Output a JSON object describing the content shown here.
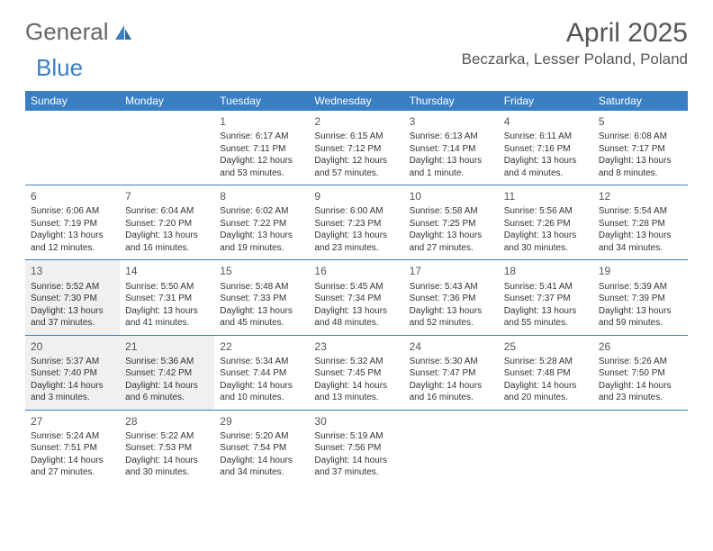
{
  "brand": {
    "general": "General",
    "blue": "Blue"
  },
  "title": "April 2025",
  "location": "Beczarka, Lesser Poland, Poland",
  "colors": {
    "header_bg": "#3a7fc4",
    "header_text": "#ffffff",
    "border": "#3a7fc4",
    "highlight_bg": "#f0f0f0",
    "text": "#333333",
    "logo_blue": "#3a7fc4",
    "logo_gray": "#666666"
  },
  "day_headers": [
    "Sunday",
    "Monday",
    "Tuesday",
    "Wednesday",
    "Thursday",
    "Friday",
    "Saturday"
  ],
  "weeks": [
    [
      null,
      null,
      {
        "n": "1",
        "sr": "Sunrise: 6:17 AM",
        "ss": "Sunset: 7:11 PM",
        "dl": "Daylight: 12 hours and 53 minutes."
      },
      {
        "n": "2",
        "sr": "Sunrise: 6:15 AM",
        "ss": "Sunset: 7:12 PM",
        "dl": "Daylight: 12 hours and 57 minutes."
      },
      {
        "n": "3",
        "sr": "Sunrise: 6:13 AM",
        "ss": "Sunset: 7:14 PM",
        "dl": "Daylight: 13 hours and 1 minute."
      },
      {
        "n": "4",
        "sr": "Sunrise: 6:11 AM",
        "ss": "Sunset: 7:16 PM",
        "dl": "Daylight: 13 hours and 4 minutes."
      },
      {
        "n": "5",
        "sr": "Sunrise: 6:08 AM",
        "ss": "Sunset: 7:17 PM",
        "dl": "Daylight: 13 hours and 8 minutes."
      }
    ],
    [
      {
        "n": "6",
        "sr": "Sunrise: 6:06 AM",
        "ss": "Sunset: 7:19 PM",
        "dl": "Daylight: 13 hours and 12 minutes."
      },
      {
        "n": "7",
        "sr": "Sunrise: 6:04 AM",
        "ss": "Sunset: 7:20 PM",
        "dl": "Daylight: 13 hours and 16 minutes."
      },
      {
        "n": "8",
        "sr": "Sunrise: 6:02 AM",
        "ss": "Sunset: 7:22 PM",
        "dl": "Daylight: 13 hours and 19 minutes."
      },
      {
        "n": "9",
        "sr": "Sunrise: 6:00 AM",
        "ss": "Sunset: 7:23 PM",
        "dl": "Daylight: 13 hours and 23 minutes."
      },
      {
        "n": "10",
        "sr": "Sunrise: 5:58 AM",
        "ss": "Sunset: 7:25 PM",
        "dl": "Daylight: 13 hours and 27 minutes."
      },
      {
        "n": "11",
        "sr": "Sunrise: 5:56 AM",
        "ss": "Sunset: 7:26 PM",
        "dl": "Daylight: 13 hours and 30 minutes."
      },
      {
        "n": "12",
        "sr": "Sunrise: 5:54 AM",
        "ss": "Sunset: 7:28 PM",
        "dl": "Daylight: 13 hours and 34 minutes."
      }
    ],
    [
      {
        "n": "13",
        "hl": true,
        "sr": "Sunrise: 5:52 AM",
        "ss": "Sunset: 7:30 PM",
        "dl": "Daylight: 13 hours and 37 minutes."
      },
      {
        "n": "14",
        "sr": "Sunrise: 5:50 AM",
        "ss": "Sunset: 7:31 PM",
        "dl": "Daylight: 13 hours and 41 minutes."
      },
      {
        "n": "15",
        "sr": "Sunrise: 5:48 AM",
        "ss": "Sunset: 7:33 PM",
        "dl": "Daylight: 13 hours and 45 minutes."
      },
      {
        "n": "16",
        "sr": "Sunrise: 5:45 AM",
        "ss": "Sunset: 7:34 PM",
        "dl": "Daylight: 13 hours and 48 minutes."
      },
      {
        "n": "17",
        "sr": "Sunrise: 5:43 AM",
        "ss": "Sunset: 7:36 PM",
        "dl": "Daylight: 13 hours and 52 minutes."
      },
      {
        "n": "18",
        "sr": "Sunrise: 5:41 AM",
        "ss": "Sunset: 7:37 PM",
        "dl": "Daylight: 13 hours and 55 minutes."
      },
      {
        "n": "19",
        "sr": "Sunrise: 5:39 AM",
        "ss": "Sunset: 7:39 PM",
        "dl": "Daylight: 13 hours and 59 minutes."
      }
    ],
    [
      {
        "n": "20",
        "hl": true,
        "sr": "Sunrise: 5:37 AM",
        "ss": "Sunset: 7:40 PM",
        "dl": "Daylight: 14 hours and 3 minutes."
      },
      {
        "n": "21",
        "hl": true,
        "sr": "Sunrise: 5:36 AM",
        "ss": "Sunset: 7:42 PM",
        "dl": "Daylight: 14 hours and 6 minutes."
      },
      {
        "n": "22",
        "sr": "Sunrise: 5:34 AM",
        "ss": "Sunset: 7:44 PM",
        "dl": "Daylight: 14 hours and 10 minutes."
      },
      {
        "n": "23",
        "sr": "Sunrise: 5:32 AM",
        "ss": "Sunset: 7:45 PM",
        "dl": "Daylight: 14 hours and 13 minutes."
      },
      {
        "n": "24",
        "sr": "Sunrise: 5:30 AM",
        "ss": "Sunset: 7:47 PM",
        "dl": "Daylight: 14 hours and 16 minutes."
      },
      {
        "n": "25",
        "sr": "Sunrise: 5:28 AM",
        "ss": "Sunset: 7:48 PM",
        "dl": "Daylight: 14 hours and 20 minutes."
      },
      {
        "n": "26",
        "sr": "Sunrise: 5:26 AM",
        "ss": "Sunset: 7:50 PM",
        "dl": "Daylight: 14 hours and 23 minutes."
      }
    ],
    [
      {
        "n": "27",
        "sr": "Sunrise: 5:24 AM",
        "ss": "Sunset: 7:51 PM",
        "dl": "Daylight: 14 hours and 27 minutes."
      },
      {
        "n": "28",
        "sr": "Sunrise: 5:22 AM",
        "ss": "Sunset: 7:53 PM",
        "dl": "Daylight: 14 hours and 30 minutes."
      },
      {
        "n": "29",
        "sr": "Sunrise: 5:20 AM",
        "ss": "Sunset: 7:54 PM",
        "dl": "Daylight: 14 hours and 34 minutes."
      },
      {
        "n": "30",
        "sr": "Sunrise: 5:19 AM",
        "ss": "Sunset: 7:56 PM",
        "dl": "Daylight: 14 hours and 37 minutes."
      },
      null,
      null,
      null
    ]
  ]
}
